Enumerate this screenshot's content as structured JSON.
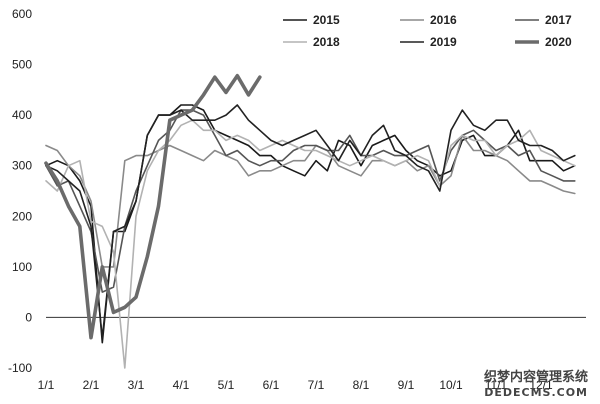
{
  "chart_data": {
    "type": "line",
    "title": "",
    "xlabel": "",
    "ylabel": "",
    "ylim": [
      -100,
      600
    ],
    "yticks": [
      -100,
      0,
      100,
      200,
      300,
      400,
      500,
      600
    ],
    "xticks": [
      "1/1",
      "2/1",
      "3/1",
      "4/1",
      "5/1",
      "6/1",
      "7/1",
      "8/1",
      "9/1",
      "10/1",
      "11/1",
      "12/1"
    ],
    "x_unit": "week",
    "legend_position": "top-right",
    "grid": false,
    "series": [
      {
        "name": "2015",
        "color": "#1a1a1a",
        "width": 1.6,
        "values": [
          300,
          310,
          300,
          270,
          220,
          -50,
          170,
          170,
          230,
          360,
          400,
          400,
          420,
          420,
          410,
          370,
          360,
          350,
          340,
          320,
          320,
          300,
          290,
          280,
          310,
          290,
          350,
          340,
          300,
          340,
          350,
          360,
          330,
          310,
          300,
          280,
          290,
          350,
          360,
          320,
          320,
          340,
          370,
          310,
          310,
          310,
          290,
          300
        ]
      },
      {
        "name": "2016",
        "color": "#8a8a8a",
        "width": 1.6,
        "values": [
          340,
          330,
          300,
          280,
          230,
          100,
          100,
          310,
          320,
          320,
          330,
          340,
          330,
          320,
          310,
          330,
          320,
          310,
          280,
          290,
          290,
          300,
          310,
          310,
          340,
          330,
          300,
          290,
          280,
          310,
          310,
          300,
          310,
          290,
          300,
          260,
          280,
          360,
          330,
          330,
          320,
          310,
          290,
          270,
          270,
          260,
          250,
          245
        ]
      },
      {
        "name": "2017",
        "color": "#555555",
        "width": 1.6,
        "values": [
          300,
          260,
          270,
          220,
          170,
          50,
          60,
          180,
          250,
          300,
          350,
          370,
          410,
          410,
          400,
          360,
          320,
          330,
          310,
          300,
          310,
          310,
          330,
          340,
          340,
          330,
          330,
          360,
          320,
          320,
          330,
          320,
          320,
          330,
          340,
          270,
          330,
          360,
          370,
          350,
          330,
          340,
          320,
          330,
          290,
          280,
          270,
          270
        ]
      },
      {
        "name": "2018",
        "color": "#b2b2b2",
        "width": 1.6,
        "values": [
          270,
          250,
          300,
          310,
          190,
          180,
          130,
          -100,
          200,
          290,
          330,
          350,
          380,
          390,
          370,
          370,
          350,
          360,
          350,
          330,
          340,
          350,
          340,
          330,
          330,
          320,
          310,
          300,
          310,
          320,
          310,
          300,
          310,
          320,
          310,
          260,
          340,
          360,
          350,
          350,
          320,
          340,
          350,
          370,
          330,
          320,
          310,
          300
        ]
      },
      {
        "name": "2019",
        "color": "#222222",
        "width": 1.6,
        "values": [
          300,
          290,
          270,
          250,
          180,
          -40,
          170,
          180,
          230,
          360,
          400,
          400,
          410,
          390,
          390,
          390,
          400,
          420,
          390,
          370,
          350,
          340,
          350,
          360,
          370,
          340,
          310,
          350,
          320,
          360,
          380,
          330,
          320,
          300,
          290,
          250,
          370,
          410,
          380,
          370,
          390,
          390,
          350,
          340,
          340,
          330,
          310,
          320
        ]
      },
      {
        "name": "2020",
        "color": "#6b6b6b",
        "width": 3.6,
        "values": [
          305,
          270,
          220,
          180,
          -40,
          100,
          10,
          20,
          40,
          120,
          220,
          390,
          400,
          410,
          440,
          475,
          445,
          478,
          440,
          475
        ]
      }
    ]
  },
  "watermark": {
    "line1": "织梦内容管理系统",
    "line2": "DEDECMS.COM"
  }
}
